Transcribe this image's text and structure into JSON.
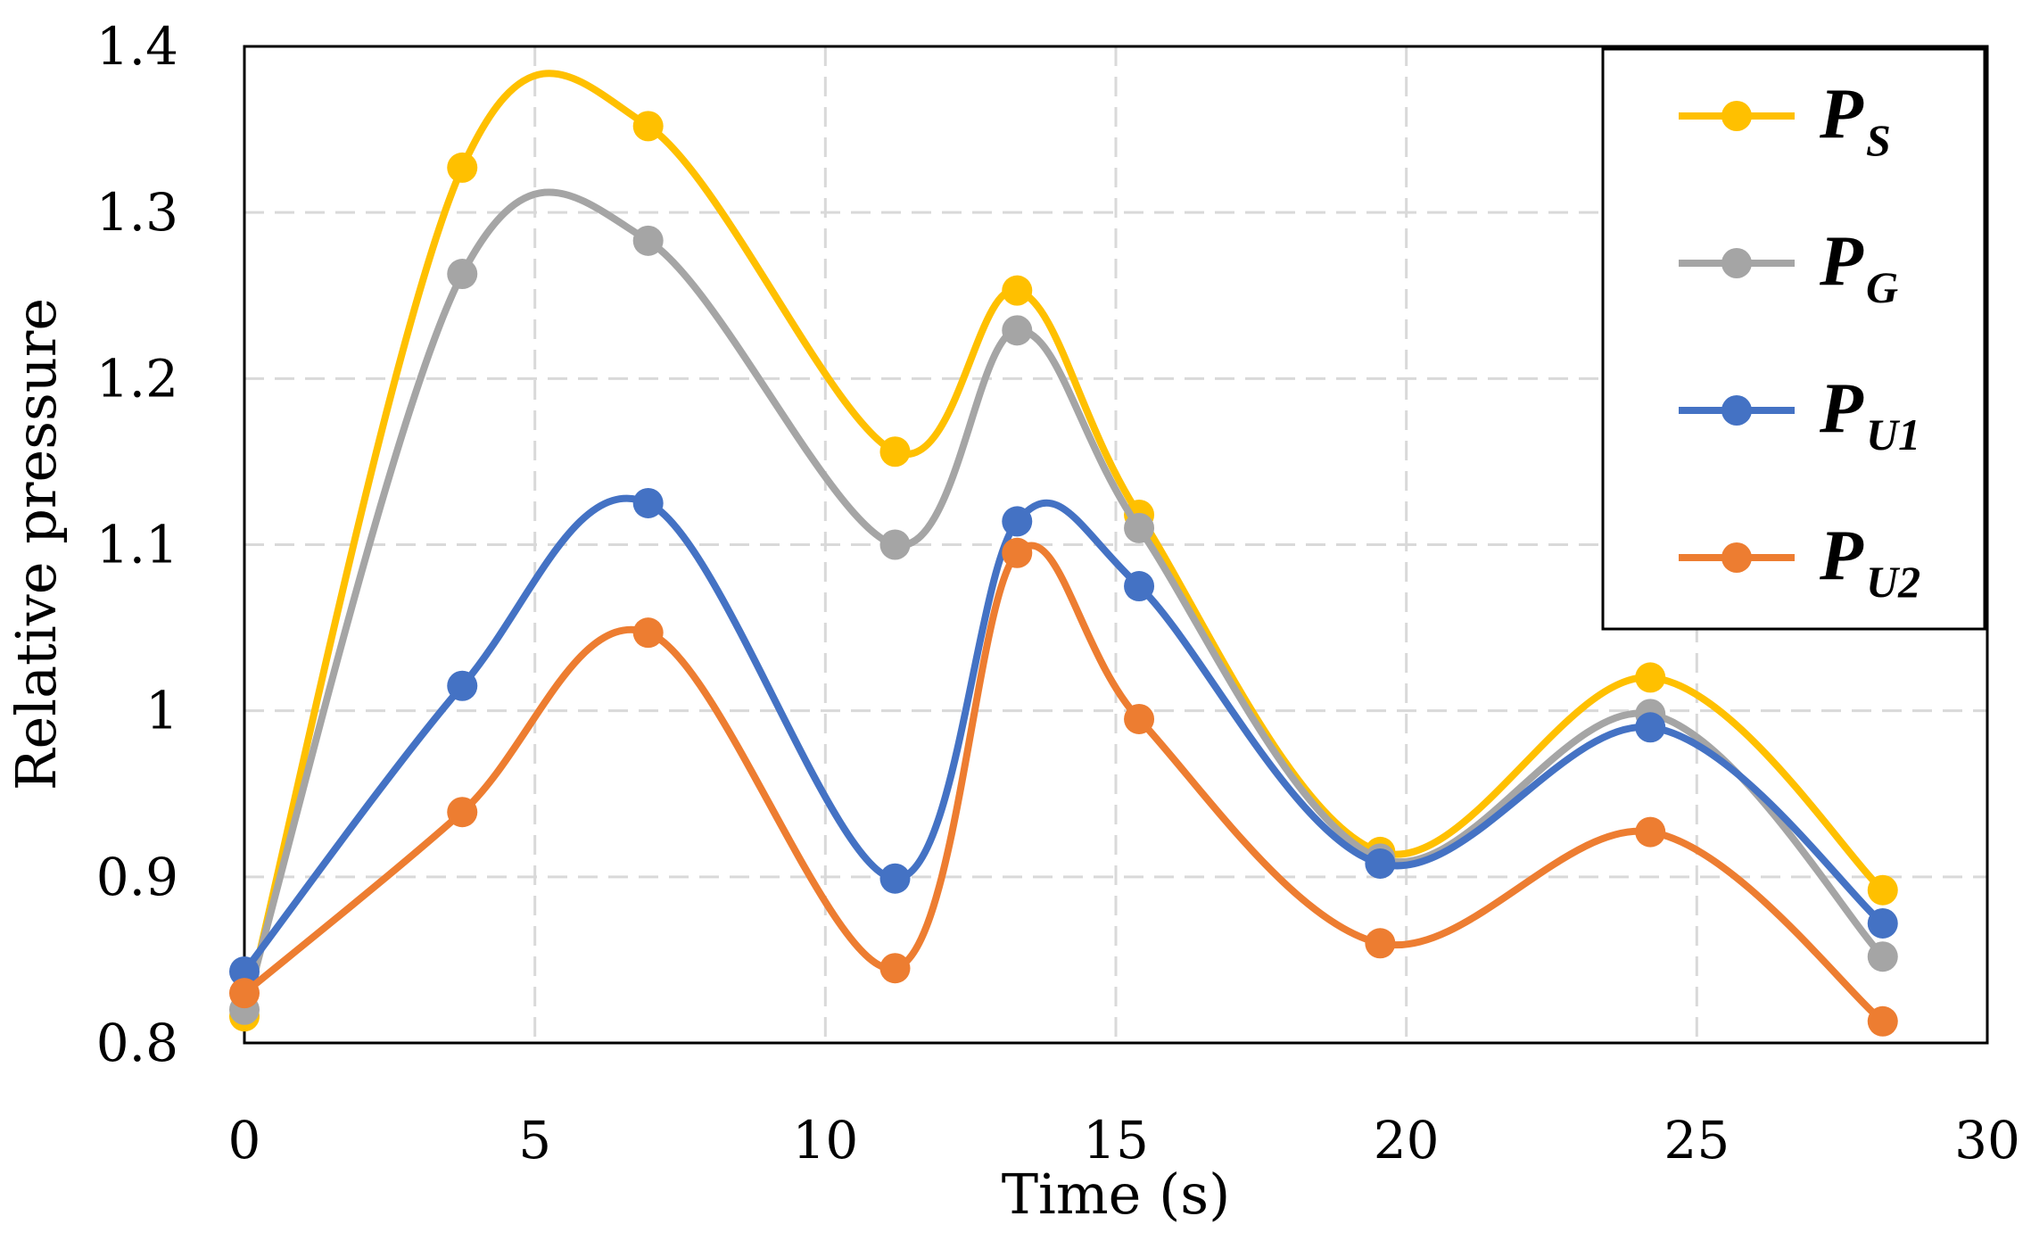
{
  "chart_data": {
    "type": "line",
    "title": "",
    "xlabel": "Time (s)",
    "ylabel": "Relative pressure",
    "xlim": [
      0,
      30
    ],
    "ylim": [
      0.8,
      1.4
    ],
    "x_ticks": [
      "0",
      "5",
      "10",
      "15",
      "20",
      "25",
      "30"
    ],
    "y_ticks": [
      "0.8",
      "0.9",
      "1",
      "1.1",
      "1.2",
      "1.3",
      "1.4"
    ],
    "grid": true,
    "legend_position": "top-right",
    "x": [
      0,
      3.75,
      6.95,
      11.2,
      13.3,
      15.4,
      19.55,
      24.2,
      28.2
    ],
    "series": [
      {
        "name": "P",
        "subscript": "S",
        "color": "#FFC000",
        "values": [
          0.816,
          1.327,
          1.352,
          1.156,
          1.253,
          1.118,
          0.915,
          1.02,
          0.892
        ]
      },
      {
        "name": "P",
        "subscript": "G",
        "color": "#A5A5A5",
        "values": [
          0.82,
          1.263,
          1.283,
          1.1,
          1.229,
          1.11,
          0.911,
          0.998,
          0.852
        ]
      },
      {
        "name": "P",
        "subscript": "U1",
        "color": "#4472C4",
        "values": [
          0.843,
          1.015,
          1.125,
          0.899,
          1.114,
          1.075,
          0.908,
          0.99,
          0.872
        ]
      },
      {
        "name": "P",
        "subscript": "U2",
        "color": "#ED7D31",
        "values": [
          0.83,
          0.939,
          1.047,
          0.845,
          1.095,
          0.995,
          0.86,
          0.927,
          0.813
        ]
      }
    ]
  }
}
